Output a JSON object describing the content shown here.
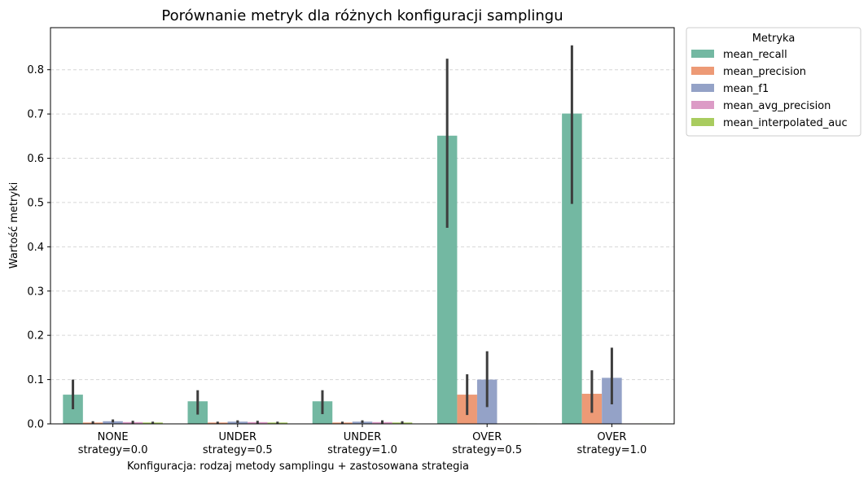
{
  "chart_data": {
    "type": "bar",
    "title": "Porównanie metryk dla różnych konfiguracji samplingu",
    "xlabel": "Konfiguracja: rodzaj metody samplingu + zastosowana strategia",
    "ylabel": "Wartość metryki",
    "ylim": [
      0,
      0.895
    ],
    "yticks": [
      0.0,
      0.1,
      0.2,
      0.3,
      0.4,
      0.5,
      0.6,
      0.7,
      0.8
    ],
    "ytick_labels": [
      "0.0",
      "0.1",
      "0.2",
      "0.3",
      "0.4",
      "0.5",
      "0.6",
      "0.7",
      "0.8"
    ],
    "grid": "y-dashed",
    "categories": [
      [
        "NONE",
        "strategy=0.0"
      ],
      [
        "UNDER",
        "strategy=0.5"
      ],
      [
        "UNDER",
        "strategy=1.0"
      ],
      [
        "OVER",
        "strategy=0.5"
      ],
      [
        "OVER",
        "strategy=1.0"
      ]
    ],
    "legend": {
      "title": "Metryka",
      "placement": "outside-top-right"
    },
    "series": [
      {
        "name": "mean_recall",
        "color": "#73b8a2",
        "values": [
          0.066,
          0.051,
          0.051,
          0.651,
          0.701
        ],
        "err_low": [
          0.033,
          0.021,
          0.022,
          0.443,
          0.497
        ],
        "err_high": [
          0.1,
          0.076,
          0.076,
          0.825,
          0.855
        ]
      },
      {
        "name": "mean_precision",
        "color": "#ed9a76",
        "values": [
          0.003,
          0.003,
          0.003,
          0.066,
          0.068
        ],
        "err_low": [
          0.001,
          0.001,
          0.001,
          0.02,
          0.025
        ],
        "err_high": [
          0.006,
          0.005,
          0.005,
          0.112,
          0.121
        ]
      },
      {
        "name": "mean_f1",
        "color": "#94a2c7",
        "values": [
          0.006,
          0.005,
          0.005,
          0.1,
          0.104
        ],
        "err_low": [
          0.003,
          0.002,
          0.002,
          0.038,
          0.044
        ],
        "err_high": [
          0.01,
          0.008,
          0.008,
          0.164,
          0.172
        ]
      },
      {
        "name": "mean_avg_precision",
        "color": "#dc9bc6",
        "values": [
          0.004,
          0.004,
          0.004,
          0.001,
          0.001
        ],
        "err_low": [
          0.001,
          0.001,
          0.001,
          0.001,
          0.001
        ],
        "err_high": [
          0.007,
          0.007,
          0.008,
          0.001,
          0.001
        ]
      },
      {
        "name": "mean_interpolated_auc",
        "color": "#a9cc5f",
        "values": [
          0.003,
          0.003,
          0.003,
          0.001,
          0.001
        ],
        "err_low": [
          0.001,
          0.001,
          0.001,
          0.001,
          0.001
        ],
        "err_high": [
          0.005,
          0.005,
          0.006,
          0.001,
          0.001
        ]
      }
    ]
  }
}
